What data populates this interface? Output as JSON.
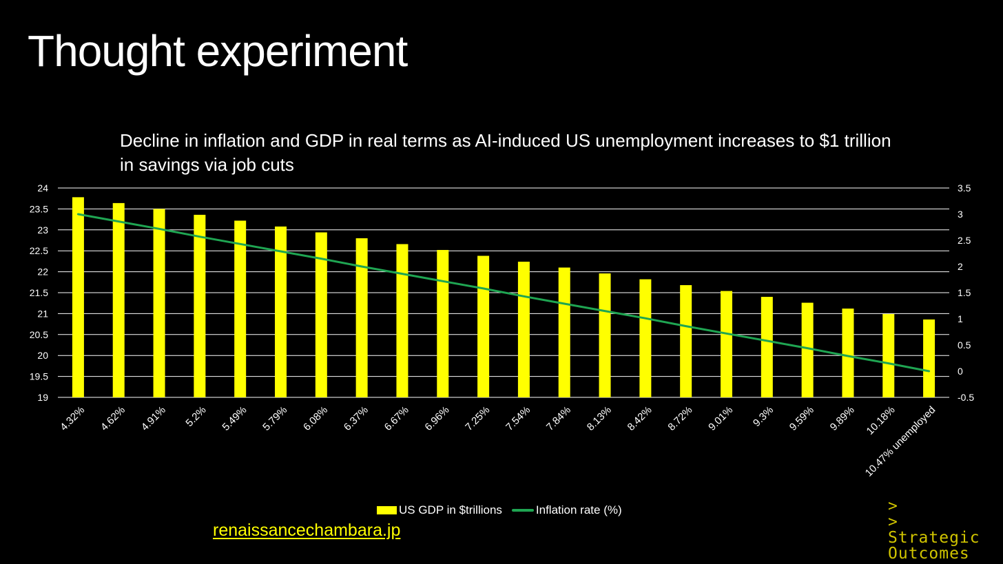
{
  "slide": {
    "title": "Thought experiment",
    "link_text": "renaissancechambara.jp"
  },
  "logo": {
    "chevron1": ">",
    "chevron2": ">",
    "line1": "Strategic",
    "line2": "Outcomes"
  },
  "colors": {
    "bar": "#FFFF00",
    "line": "#1FA552",
    "grid": "#FFFFFF",
    "link": "#FFFF00",
    "logo": "#D0C400"
  },
  "chart_data": {
    "type": "bar",
    "title": "Decline in inflation and GDP in real terms as AI-induced US unemployment increases to $1 trillion in savings via job cuts",
    "categories": [
      "4.32%",
      "4.62%",
      "4.91%",
      "5.2%",
      "5.49%",
      "5.79%",
      "6.08%",
      "6.37%",
      "6.67%",
      "6.96%",
      "7.25%",
      "7.54%",
      "7.84%",
      "8.13%",
      "8.42%",
      "8.72%",
      "9.01%",
      "9.3%",
      "9.59%",
      "9.89%",
      "10.18%",
      "10.47% unemployed"
    ],
    "series": [
      {
        "name": "US GDP in $trillions",
        "type": "bar",
        "axis": "left",
        "values": [
          23.78,
          23.64,
          23.5,
          23.36,
          23.22,
          23.08,
          22.94,
          22.8,
          22.66,
          22.52,
          22.38,
          22.24,
          22.1,
          21.96,
          21.82,
          21.68,
          21.54,
          21.4,
          21.26,
          21.12,
          20.99,
          20.86
        ]
      },
      {
        "name": "Inflation rate (%)",
        "type": "line",
        "axis": "right",
        "values": [
          3.0,
          2.86,
          2.72,
          2.57,
          2.43,
          2.29,
          2.15,
          2.0,
          1.86,
          1.72,
          1.58,
          1.43,
          1.29,
          1.15,
          1.01,
          0.86,
          0.72,
          0.58,
          0.44,
          0.29,
          0.15,
          0.0
        ]
      }
    ],
    "y_left": {
      "min": 19,
      "max": 24,
      "ticks": [
        "24",
        "23.5",
        "23",
        "22.5",
        "22",
        "21.5",
        "21",
        "20.5",
        "20",
        "19.5",
        "19"
      ]
    },
    "y_right": {
      "min": -0.5,
      "max": 3.5,
      "ticks": [
        "3.5",
        "3",
        "2.5",
        "2",
        "1.5",
        "1",
        "0.5",
        "0",
        "-0.5"
      ]
    },
    "grid": true,
    "legend_position": "bottom-center"
  }
}
